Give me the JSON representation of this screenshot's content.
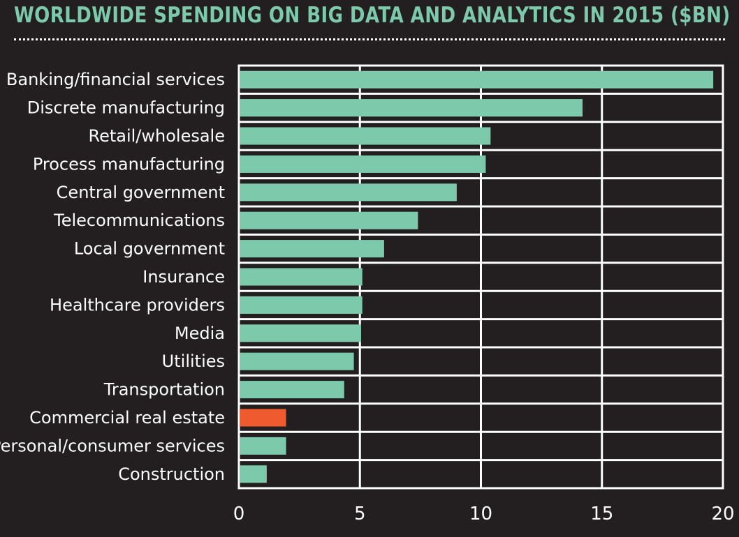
{
  "chart_data": {
    "type": "bar",
    "orientation": "horizontal",
    "title": "WORLDWIDE SPENDING ON BIG DATA AND ANALYTICS IN 2015 ($BN)",
    "categories": [
      "Banking/financial services",
      "Discrete manufacturing",
      "Retail/wholesale",
      "Process manufacturing",
      "Central government",
      "Telecommunications",
      "Local government",
      "Insurance",
      "Healthcare providers",
      "Media",
      "Utilities",
      "Transportation",
      "Commercial real estate",
      "Personal/consumer services",
      "Construction"
    ],
    "values": [
      19.6,
      14.2,
      10.4,
      10.2,
      9.0,
      7.4,
      6.0,
      5.1,
      5.1,
      5.05,
      4.75,
      4.35,
      1.95,
      1.95,
      1.15
    ],
    "highlight_index": 12,
    "xlim": [
      0,
      20
    ],
    "xticks": [
      0,
      5,
      10,
      15,
      20
    ],
    "xlabel": "",
    "ylabel": "",
    "grid": true,
    "colors": {
      "bar": "#7cc9ab",
      "highlight": "#ef5a2e",
      "background": "#231f20",
      "grid": "#ffffff",
      "title": "#7cc9ab",
      "text": "#ffffff"
    }
  }
}
